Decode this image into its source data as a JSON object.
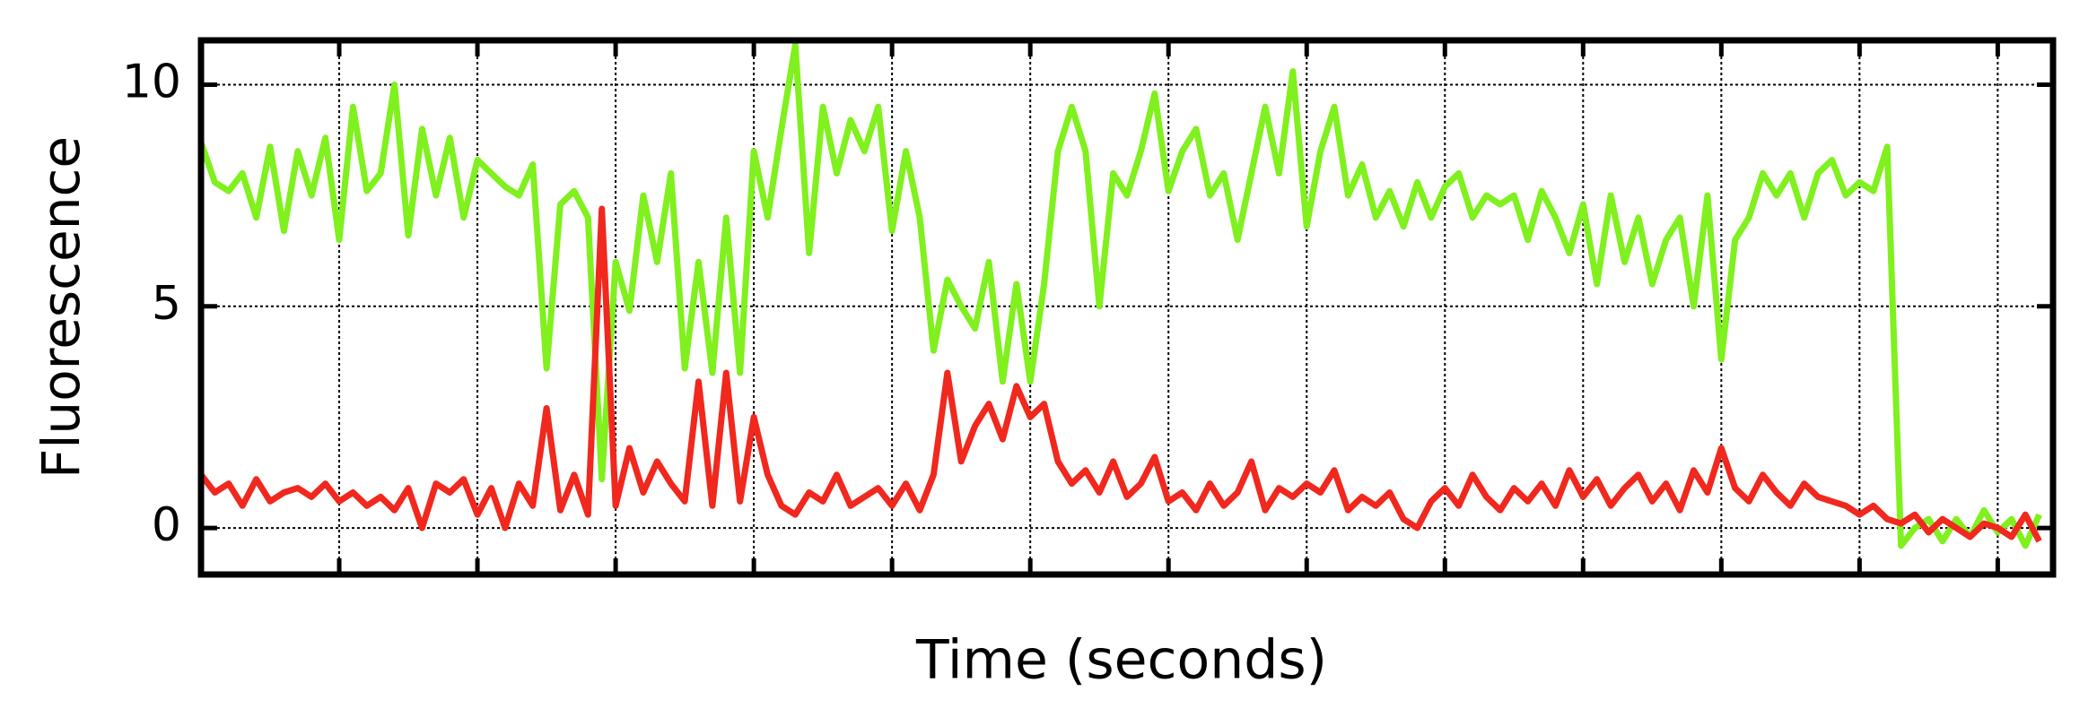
{
  "chart_data": {
    "type": "line",
    "xlabel": "Time (seconds)",
    "ylabel": "Fluorescence",
    "x": [
      0,
      0.1,
      0.2,
      0.3,
      0.4,
      0.5,
      0.6,
      0.7,
      0.8,
      0.9,
      1,
      1.1,
      1.2,
      1.3,
      1.4,
      1.5,
      1.6,
      1.7,
      1.8,
      1.9,
      2,
      2.1,
      2.2,
      2.3,
      2.4,
      2.5,
      2.6,
      2.7,
      2.8,
      2.9,
      3,
      3.1,
      3.2,
      3.3,
      3.4,
      3.5,
      3.6,
      3.7,
      3.8,
      3.9,
      4,
      4.1,
      4.2,
      4.3,
      4.4,
      4.5,
      4.6,
      4.7,
      4.8,
      4.9,
      5,
      5.1,
      5.2,
      5.3,
      5.4,
      5.5,
      5.6,
      5.7,
      5.8,
      5.9,
      6,
      6.1,
      6.2,
      6.3,
      6.4,
      6.5,
      6.6,
      6.7,
      6.8,
      6.9,
      7,
      7.1,
      7.2,
      7.3,
      7.4,
      7.5,
      7.6,
      7.7,
      7.8,
      7.9,
      8,
      8.1,
      8.2,
      8.3,
      8.4,
      8.5,
      8.6,
      8.7,
      8.8,
      8.9,
      9,
      9.1,
      9.2,
      9.3,
      9.4,
      9.5,
      9.6,
      9.7,
      9.8,
      9.9,
      10,
      10.1,
      10.2,
      10.3,
      10.4,
      10.5,
      10.6,
      10.7,
      10.8,
      10.9,
      11,
      11.1,
      11.2,
      11.3,
      11.4,
      11.5,
      11.6,
      11.7,
      11.8,
      11.9,
      12,
      12.1,
      12.2,
      12.3,
      12.4,
      12.5,
      12.6,
      12.7,
      12.8,
      12.9,
      13,
      13.1,
      13.2,
      13.3
    ],
    "series": [
      {
        "color": "#80f01e",
        "values": [
          8.7,
          7.8,
          7.6,
          8.0,
          7.0,
          8.6,
          6.7,
          8.5,
          7.5,
          8.8,
          6.5,
          9.5,
          7.6,
          8.0,
          10.0,
          6.6,
          9.0,
          7.5,
          8.8,
          7.0,
          8.3,
          8.0,
          7.7,
          7.5,
          8.2,
          3.6,
          7.3,
          7.6,
          7.0,
          1.1,
          6.0,
          4.9,
          7.5,
          6.0,
          8.0,
          3.6,
          6.0,
          3.5,
          7.0,
          3.5,
          8.5,
          7.0,
          9.0,
          10.9,
          6.2,
          9.5,
          8.0,
          9.2,
          8.5,
          9.5,
          6.7,
          8.5,
          7.0,
          4.0,
          5.6,
          5.0,
          4.5,
          6.0,
          3.3,
          5.5,
          3.3,
          5.5,
          8.5,
          9.5,
          8.5,
          5.0,
          8.0,
          7.5,
          8.5,
          9.8,
          7.6,
          8.5,
          9.0,
          7.5,
          8.0,
          6.5,
          8.0,
          9.5,
          8.0,
          10.3,
          6.8,
          8.5,
          9.5,
          7.5,
          8.2,
          7.0,
          7.6,
          6.8,
          7.8,
          7.0,
          7.7,
          8.0,
          7.0,
          7.5,
          7.3,
          7.5,
          6.5,
          7.6,
          7.0,
          6.2,
          7.3,
          5.5,
          7.5,
          6.0,
          7.0,
          5.5,
          6.5,
          7.0,
          5.0,
          7.5,
          3.8,
          6.5,
          7.0,
          8.0,
          7.5,
          8.0,
          7.0,
          8.0,
          8.3,
          7.5,
          7.8,
          7.6,
          8.6,
          -0.4,
          0.0,
          0.2,
          -0.3,
          0.2,
          -0.2,
          0.4,
          -0.1,
          0.2,
          -0.4,
          0.3
        ]
      },
      {
        "color": "#f0281e",
        "values": [
          1.2,
          0.8,
          1.0,
          0.5,
          1.1,
          0.6,
          0.8,
          0.9,
          0.7,
          1.0,
          0.6,
          0.8,
          0.5,
          0.7,
          0.4,
          0.9,
          0.0,
          1.0,
          0.8,
          1.1,
          0.3,
          0.9,
          0.0,
          1.0,
          0.5,
          2.7,
          0.4,
          1.2,
          0.3,
          7.2,
          0.5,
          1.8,
          0.8,
          1.5,
          1.0,
          0.6,
          3.3,
          0.5,
          3.5,
          0.6,
          2.5,
          1.2,
          0.5,
          0.3,
          0.8,
          0.6,
          1.2,
          0.5,
          0.7,
          0.9,
          0.5,
          1.0,
          0.4,
          1.2,
          3.5,
          1.5,
          2.3,
          2.8,
          2.0,
          3.2,
          2.5,
          2.8,
          1.5,
          1.0,
          1.3,
          0.8,
          1.5,
          0.7,
          1.0,
          1.6,
          0.6,
          0.8,
          0.4,
          1.0,
          0.5,
          0.8,
          1.5,
          0.4,
          0.9,
          0.7,
          1.0,
          0.8,
          1.3,
          0.4,
          0.7,
          0.5,
          0.8,
          0.2,
          0.0,
          0.6,
          0.9,
          0.5,
          1.2,
          0.7,
          0.4,
          0.9,
          0.6,
          1.0,
          0.5,
          1.3,
          0.7,
          1.1,
          0.5,
          0.9,
          1.2,
          0.6,
          1.0,
          0.4,
          1.3,
          0.8,
          1.8,
          0.9,
          0.6,
          1.2,
          0.8,
          0.5,
          1.0,
          0.7,
          0.6,
          0.5,
          0.3,
          0.5,
          0.2,
          0.1,
          0.3,
          -0.1,
          0.2,
          0.0,
          -0.2,
          0.1,
          0.0,
          -0.2,
          0.3,
          -0.3
        ]
      }
    ],
    "xlim": [
      0,
      13.4
    ],
    "xticks": [
      1,
      2,
      3,
      4,
      5,
      6,
      7,
      8,
      9,
      10,
      11,
      12,
      13
    ],
    "ylim": [
      -1.05,
      11
    ],
    "yticks": [
      0,
      5,
      10
    ],
    "grid": true
  }
}
